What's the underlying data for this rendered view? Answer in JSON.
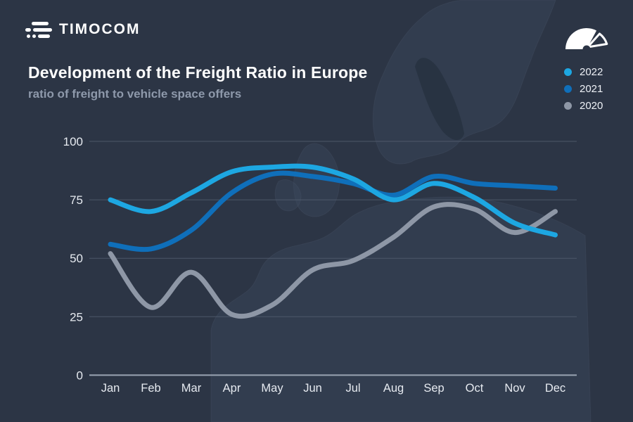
{
  "header": {
    "logo_text": "TIMOCOM"
  },
  "title": "Development of the Freight Ratio in Europe",
  "subtitle": "ratio of freight to vehicle space offers",
  "legend": {
    "items": [
      {
        "label": "2022",
        "color": "#1da7e2"
      },
      {
        "label": "2021",
        "color": "#0f6fba"
      },
      {
        "label": "2020",
        "color": "#8e97a6"
      }
    ]
  },
  "chart_data": {
    "type": "line",
    "title": "Development of the Freight Ratio in Europe",
    "subtitle": "ratio of freight to vehicle space offers",
    "categories": [
      "Jan",
      "Feb",
      "Mar",
      "Apr",
      "May",
      "Jun",
      "Jul",
      "Aug",
      "Sep",
      "Oct",
      "Nov",
      "Dec"
    ],
    "series": [
      {
        "name": "2022",
        "color": "#1da7e2",
        "values": [
          75,
          70,
          78,
          87,
          89,
          89,
          84,
          75,
          82,
          76,
          65,
          60
        ]
      },
      {
        "name": "2021",
        "color": "#0f6fba",
        "values": [
          56,
          54,
          62,
          78,
          86,
          85,
          82,
          77,
          85,
          82,
          81,
          80
        ]
      },
      {
        "name": "2020",
        "color": "#8e97a6",
        "values": [
          52,
          29,
          44,
          26,
          30,
          45,
          49,
          59,
          72,
          71,
          61,
          70
        ]
      }
    ],
    "xlabel": "",
    "ylabel": "",
    "ylim": [
      0,
      100
    ],
    "yticks": [
      0,
      25,
      50,
      75,
      100
    ],
    "grid": "horizontal",
    "legend_position": "top-right"
  },
  "colors": {
    "background": "#2c3545",
    "map_land": "#3d4a5e",
    "map_sea_dark": "#273140",
    "grid": "#525d6e",
    "axis_zero": "#9aa4b2",
    "title": "#ffffff",
    "subtitle": "#8e99ab",
    "tick_label": "#e6eaf0",
    "icon": "#ffffff"
  }
}
